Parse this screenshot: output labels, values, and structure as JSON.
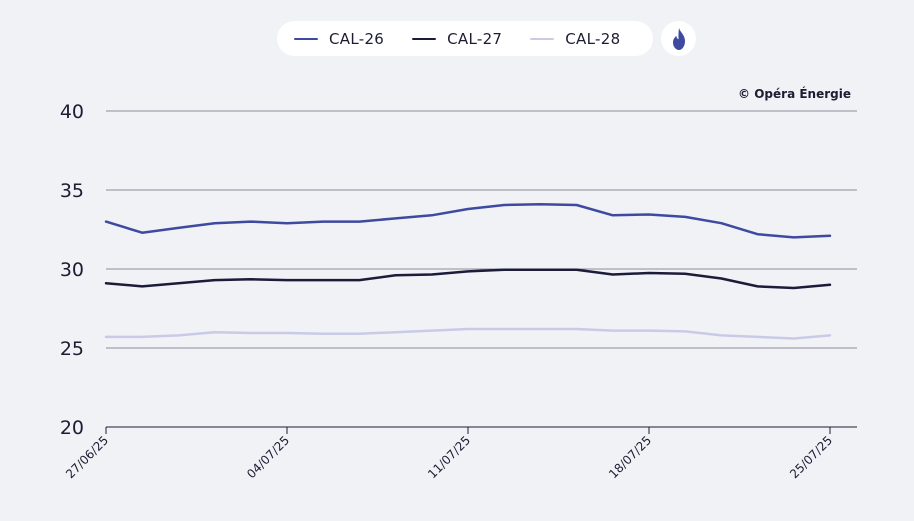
{
  "legend": [
    {
      "label": "CAL-26",
      "color": "#3e4aa0"
    },
    {
      "label": "CAL-27",
      "color": "#1b1b3a"
    },
    {
      "label": "CAL-28",
      "color": "#c9cbe6"
    }
  ],
  "badge_icon": "flame-icon",
  "credit": "© Opéra Énergie",
  "chart_data": {
    "type": "line",
    "title": "",
    "xlabel": "",
    "ylabel": "",
    "ylim": [
      20,
      40
    ],
    "yticks": [
      20,
      25,
      30,
      35,
      40
    ],
    "grid": true,
    "legend_position": "top-center",
    "x": [
      "27/06/25",
      "30/06/25",
      "01/07/25",
      "02/07/25",
      "03/07/25",
      "04/07/25",
      "07/07/25",
      "08/07/25",
      "09/07/25",
      "10/07/25",
      "11/07/25",
      "14/07/25",
      "15/07/25",
      "16/07/25",
      "17/07/25",
      "18/07/25",
      "21/07/25",
      "22/07/25",
      "23/07/25",
      "24/07/25",
      "25/07/25"
    ],
    "xticks": [
      "27/06/25",
      "04/07/25",
      "11/07/25",
      "18/07/25",
      "25/07/25"
    ],
    "series": [
      {
        "name": "CAL-26",
        "color": "#3e4aa0",
        "values": [
          33.0,
          32.3,
          32.6,
          32.9,
          33.0,
          32.9,
          33.0,
          33.0,
          33.2,
          33.4,
          33.8,
          34.05,
          34.1,
          34.05,
          33.4,
          33.45,
          33.3,
          32.9,
          32.2,
          32.0,
          32.1
        ]
      },
      {
        "name": "CAL-27",
        "color": "#1b1b3a",
        "values": [
          29.1,
          28.9,
          29.1,
          29.3,
          29.35,
          29.3,
          29.3,
          29.3,
          29.6,
          29.65,
          29.85,
          29.95,
          29.95,
          29.95,
          29.65,
          29.75,
          29.7,
          29.4,
          28.9,
          28.8,
          29.0
        ]
      },
      {
        "name": "CAL-28",
        "color": "#c9cbe6",
        "values": [
          25.7,
          25.7,
          25.8,
          26.0,
          25.95,
          25.95,
          25.9,
          25.9,
          26.0,
          26.1,
          26.2,
          26.2,
          26.2,
          26.2,
          26.1,
          26.1,
          26.05,
          25.8,
          25.7,
          25.6,
          25.8
        ]
      }
    ]
  }
}
